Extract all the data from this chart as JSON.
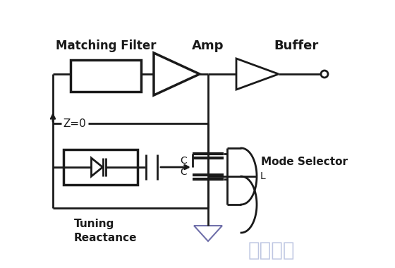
{
  "bg_color": "#ffffff",
  "line_color": "#1a1a1a",
  "watermark_color_1": "#9090c0",
  "watermark_color_2": "#a0a0d0",
  "watermark_text": "统一电子",
  "labels": {
    "matching_filter": "Matching Filter",
    "amp": "Amp",
    "buffer": "Buffer",
    "z0": "Z=0",
    "mode_selector": "Mode Selector",
    "tuning": "Tuning\nReactance",
    "cap_top": "C",
    "cap_bot": "C",
    "ind": "L"
  },
  "figsize": [
    5.6,
    3.8
  ],
  "dpi": 100
}
